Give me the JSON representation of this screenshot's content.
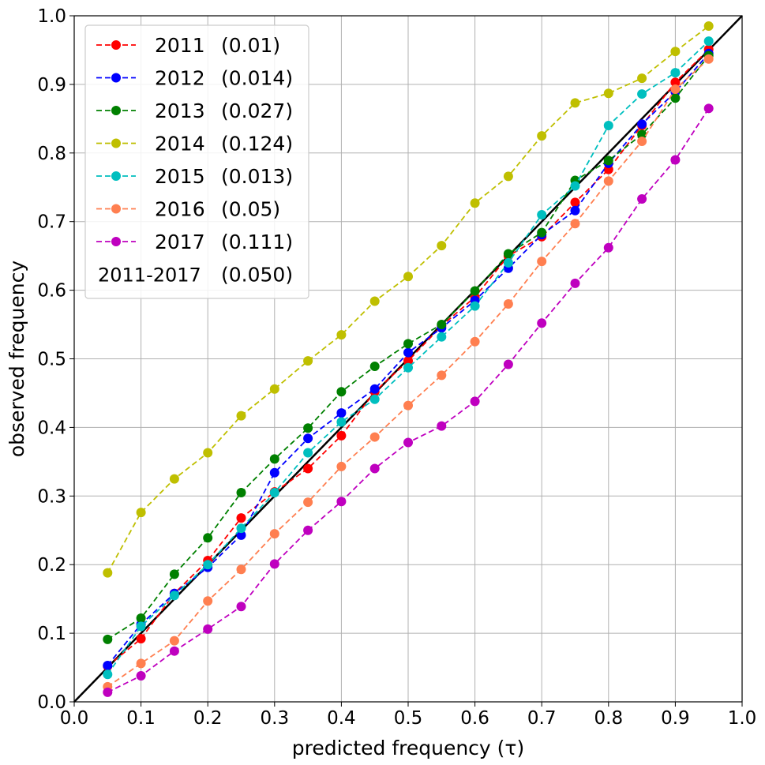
{
  "chart_data": {
    "type": "line",
    "xlabel": "predicted frequency (τ)",
    "ylabel": "observed frequency",
    "xlim": [
      0.0,
      1.0
    ],
    "ylim": [
      0.0,
      1.0
    ],
    "xticks": [
      "0.0",
      "0.1",
      "0.2",
      "0.3",
      "0.4",
      "0.5",
      "0.6",
      "0.7",
      "0.8",
      "0.9",
      "1.0"
    ],
    "yticks": [
      "0.0",
      "0.1",
      "0.2",
      "0.3",
      "0.4",
      "0.5",
      "0.6",
      "0.7",
      "0.8",
      "0.9",
      "1.0"
    ],
    "grid": true,
    "legend_position": "top-left",
    "x": [
      0.05,
      0.1,
      0.15,
      0.2,
      0.25,
      0.3,
      0.35,
      0.4,
      0.45,
      0.5,
      0.55,
      0.6,
      0.65,
      0.7,
      0.75,
      0.8,
      0.85,
      0.9,
      0.95
    ],
    "reference_line": {
      "from": [
        0.0,
        0.0
      ],
      "to": [
        1.0,
        1.0
      ],
      "color": "#000000"
    },
    "series": [
      {
        "name": "2011",
        "score": "(0.01)",
        "color": "#ff0000",
        "values": [
          0.052,
          0.092,
          0.158,
          0.206,
          0.268,
          0.306,
          0.34,
          0.388,
          0.452,
          0.497,
          0.548,
          0.59,
          0.65,
          0.678,
          0.728,
          0.776,
          0.84,
          0.903,
          0.951
        ]
      },
      {
        "name": "2012",
        "score": "(0.014)",
        "color": "#0000ff",
        "values": [
          0.053,
          0.113,
          0.158,
          0.196,
          0.243,
          0.334,
          0.384,
          0.421,
          0.456,
          0.509,
          0.545,
          0.585,
          0.632,
          0.681,
          0.716,
          0.785,
          0.842,
          0.889,
          0.945
        ]
      },
      {
        "name": "2013",
        "score": "(0.027)",
        "color": "#008000",
        "values": [
          0.091,
          0.122,
          0.186,
          0.239,
          0.305,
          0.354,
          0.399,
          0.452,
          0.489,
          0.522,
          0.55,
          0.599,
          0.653,
          0.684,
          0.76,
          0.789,
          0.827,
          0.88,
          0.942
        ]
      },
      {
        "name": "2014",
        "score": "(0.124)",
        "color": "#bfbf00",
        "values": [
          0.188,
          0.276,
          0.325,
          0.363,
          0.417,
          0.456,
          0.497,
          0.535,
          0.584,
          0.62,
          0.665,
          0.727,
          0.766,
          0.825,
          0.873,
          0.887,
          0.909,
          0.948,
          0.985
        ]
      },
      {
        "name": "2015",
        "score": "(0.013)",
        "color": "#00bfbf",
        "values": [
          0.04,
          0.11,
          0.155,
          0.2,
          0.253,
          0.305,
          0.363,
          0.408,
          0.441,
          0.487,
          0.532,
          0.577,
          0.64,
          0.71,
          0.752,
          0.84,
          0.886,
          0.917,
          0.963
        ]
      },
      {
        "name": "2016",
        "score": "(0.05)",
        "color": "#ff7f50",
        "values": [
          0.022,
          0.056,
          0.089,
          0.147,
          0.193,
          0.245,
          0.291,
          0.343,
          0.386,
          0.432,
          0.476,
          0.525,
          0.58,
          0.642,
          0.697,
          0.759,
          0.817,
          0.893,
          0.937
        ]
      },
      {
        "name": "2017",
        "score": "(0.111)",
        "color": "#bf00bf",
        "values": [
          0.014,
          0.038,
          0.074,
          0.106,
          0.139,
          0.201,
          0.25,
          0.292,
          0.34,
          0.378,
          0.402,
          0.438,
          0.492,
          0.552,
          0.61,
          0.662,
          0.733,
          0.79,
          0.865
        ]
      }
    ],
    "legend_extra": {
      "label": "2011-2017",
      "score": "(0.050)"
    }
  }
}
